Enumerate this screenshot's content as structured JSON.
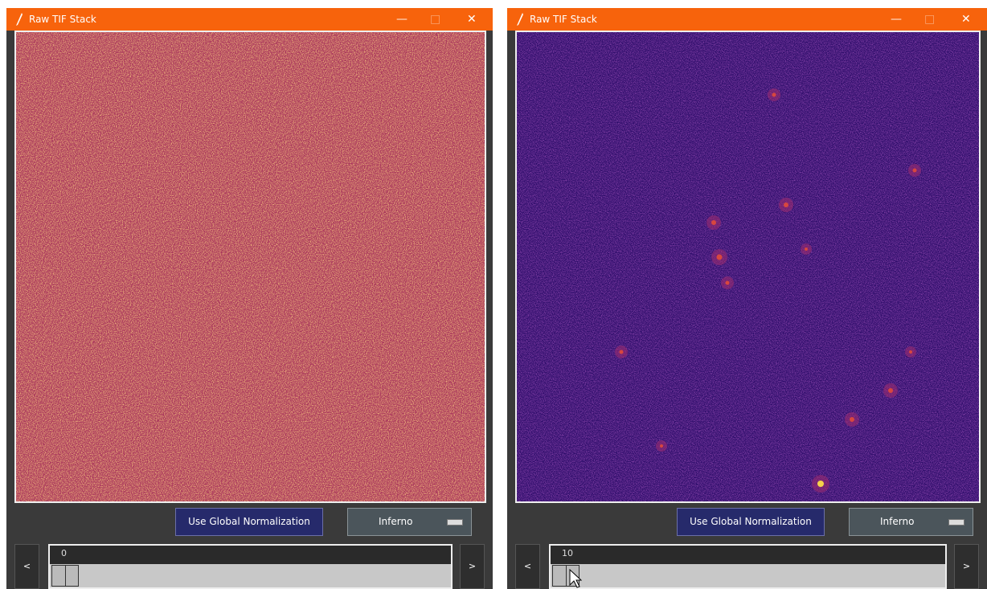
{
  "windows": [
    {
      "title": "Raw TIF Stack",
      "button": "Use Global Normalization",
      "colormap": "Inferno",
      "slider_value": "0",
      "prev": "<",
      "next": ">"
    },
    {
      "title": "Raw TIF Stack",
      "button": "Use Global Normalization",
      "colormap": "Inferno",
      "slider_value": "10",
      "prev": "<",
      "next": ">"
    }
  ]
}
